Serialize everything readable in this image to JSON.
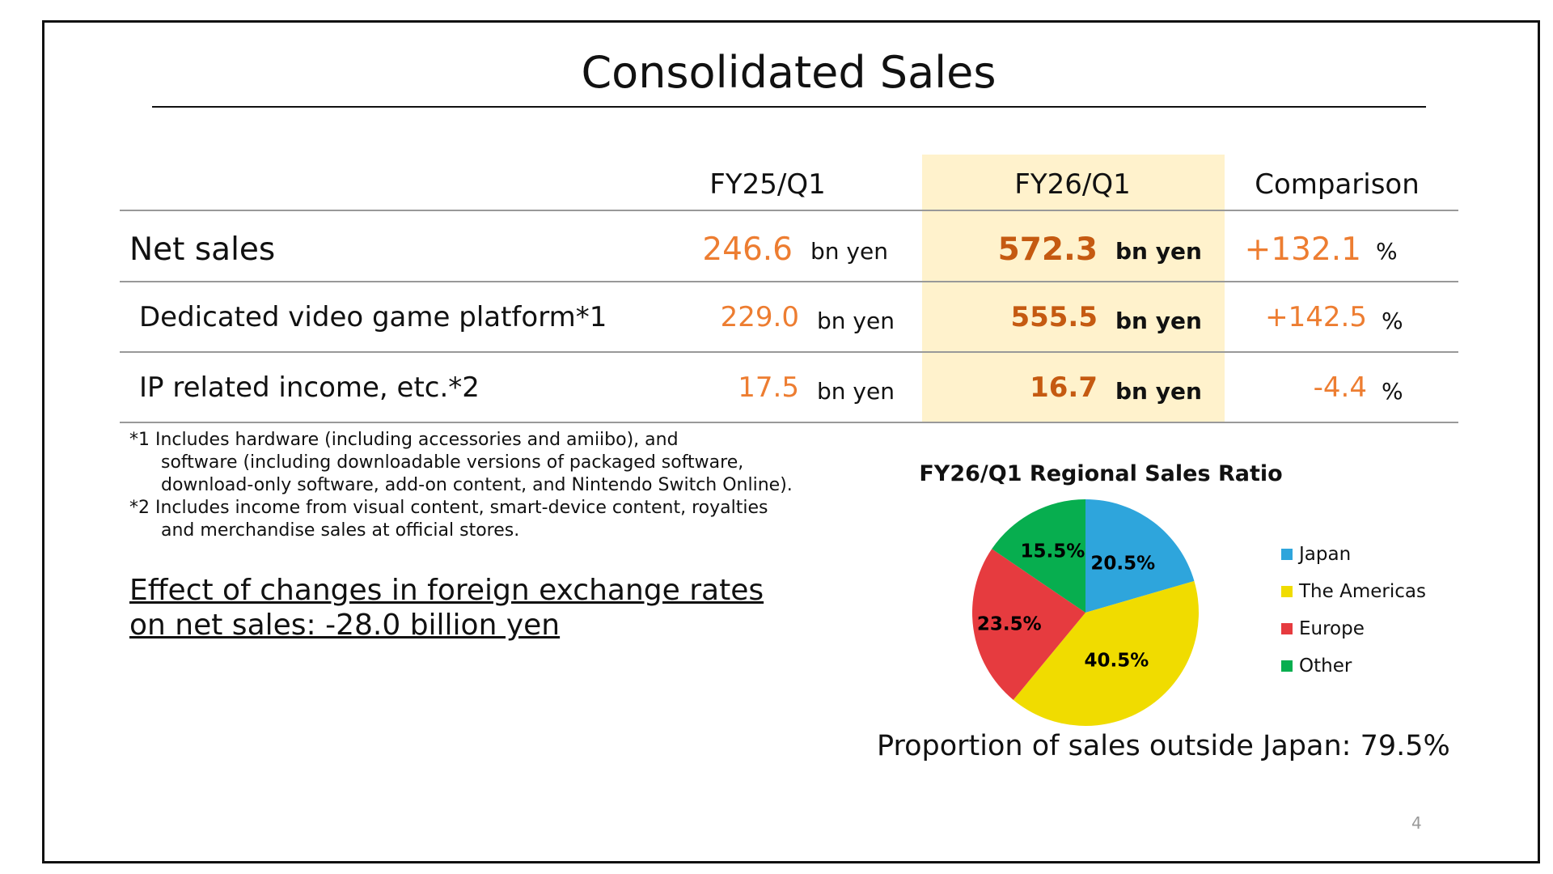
{
  "title": "Consolidated Sales",
  "table": {
    "headers": [
      "FY25/Q1",
      "FY26/Q1",
      "Comparison"
    ],
    "rows": [
      {
        "label": "Net sales",
        "fy25": "246.6",
        "fy26": "572.3",
        "unit": "bn yen",
        "comparison": "+132.1",
        "comp_unit": "%"
      },
      {
        "label": "Dedicated video game platform*1",
        "fy25": "229.0",
        "fy26": "555.5",
        "unit": "bn yen",
        "comparison": "+142.5",
        "comp_unit": "%"
      },
      {
        "label": "IP related income, etc.*2",
        "fy25": "17.5",
        "fy26": "16.7",
        "unit": "bn yen",
        "comparison": "-4.4",
        "comp_unit": "%"
      }
    ]
  },
  "footnotes": [
    "*1 Includes hardware (including accessories and amiibo), and",
    "software (including downloadable versions of packaged software,",
    "download-only software, add-on content, and Nintendo Switch Online).",
    "*2 Includes income from visual content, smart-device content, royalties",
    "and merchandise sales at official stores."
  ],
  "effect": [
    "Effect of changes in foreign exchange rates",
    "on net sales: -28.0 billion yen"
  ],
  "chart_data": {
    "type": "pie",
    "title": "FY26/Q1 Regional Sales Ratio",
    "categories": [
      "Japan",
      "The Americas",
      "Europe",
      "Other"
    ],
    "values": [
      20.5,
      40.5,
      23.5,
      15.5
    ],
    "labels": [
      "20.5%",
      "40.5%",
      "23.5%",
      "15.5%"
    ],
    "colors": [
      "#2ea5dc",
      "#f0dc00",
      "#e63b3f",
      "#07ae4f"
    ],
    "legend": "right"
  },
  "proportion": "Proportion of sales outside Japan: 79.5%",
  "page_number": "4"
}
